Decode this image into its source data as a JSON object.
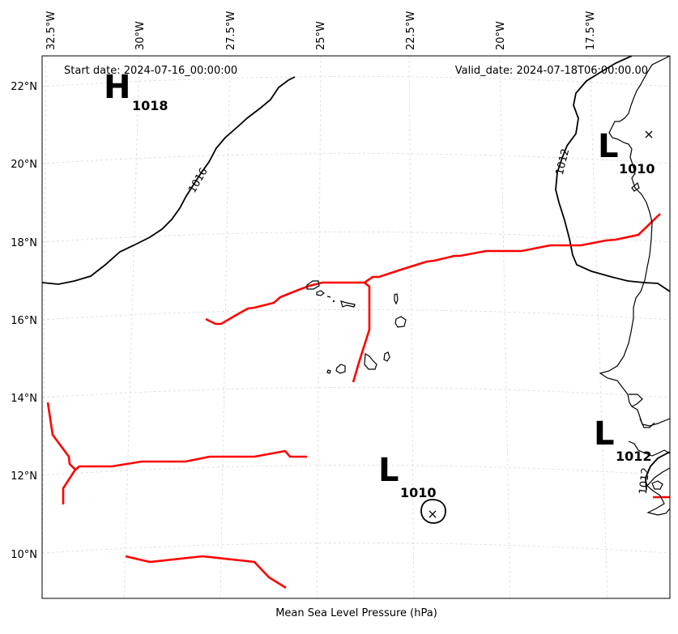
{
  "header": {
    "start_date": "Start date: 2024-07-16_00:00:00",
    "valid_date": "Valid_date: 2024-07-18T06:00:00.00"
  },
  "caption": "Mean Sea Level Pressure (hPa)",
  "lon_ticks": [
    "32.5°W",
    "30°W",
    "27.5°W",
    "25°W",
    "22.5°W",
    "20°W",
    "17.5°W"
  ],
  "lat_ticks": [
    "22°N",
    "20°N",
    "18°N",
    "16°N",
    "14°N",
    "12°N",
    "10°N"
  ],
  "pressure_centers": [
    {
      "type": "H",
      "value": "1018"
    },
    {
      "type": "L",
      "value": "1010"
    },
    {
      "type": "L",
      "value": "1010"
    },
    {
      "type": "L",
      "value": "1012"
    }
  ],
  "isobar_labels": [
    "1016",
    "1012",
    "1012"
  ],
  "colors": {
    "isobar": "#000000",
    "trough": "#ff0000",
    "grid": "#d9d9d9",
    "coast": "#000000"
  }
}
